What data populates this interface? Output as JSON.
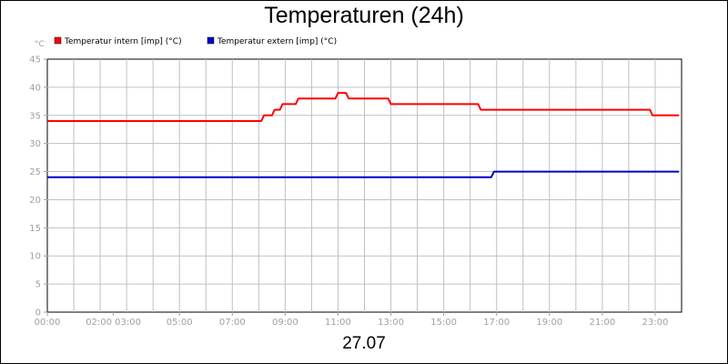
{
  "chart_data": {
    "type": "line",
    "title": "Temperaturen (24h)",
    "xlabel": "27.07",
    "ylabel": "°C",
    "x_unit": "hours",
    "xlim": [
      0,
      24
    ],
    "ylim": [
      0,
      45
    ],
    "y_ticks": [
      0,
      5,
      10,
      15,
      20,
      25,
      30,
      35,
      40,
      45
    ],
    "x_ticks": [
      {
        "x": 0,
        "label": "00:00"
      },
      {
        "x": 2.5,
        "label": "02:00 03:00"
      },
      {
        "x": 5,
        "label": "05:00"
      },
      {
        "x": 7,
        "label": "07:00"
      },
      {
        "x": 9,
        "label": "09:00"
      },
      {
        "x": 11,
        "label": "11:00"
      },
      {
        "x": 13,
        "label": "13:00"
      },
      {
        "x": 15,
        "label": "15:00"
      },
      {
        "x": 17,
        "label": "17:00"
      },
      {
        "x": 19,
        "label": "19:00"
      },
      {
        "x": 21,
        "label": "21:00"
      },
      {
        "x": 23,
        "label": "23:00"
      }
    ],
    "grid_x": [
      1,
      2,
      3,
      4,
      5,
      6,
      7,
      8,
      9,
      10,
      11,
      12,
      13,
      14,
      15,
      16,
      17,
      18,
      19,
      20,
      21,
      22,
      23
    ],
    "grid": true,
    "legend_position": "top-left",
    "series": [
      {
        "name": "Temperatur intern [imp] (°C)",
        "color": "#ff0000",
        "x": [
          0,
          8.1,
          8.2,
          8.5,
          8.6,
          8.8,
          8.9,
          9.4,
          9.5,
          10.9,
          11.0,
          11.3,
          11.4,
          12.9,
          13.0,
          16.3,
          16.4,
          22.8,
          22.9,
          23.9
        ],
        "y": [
          34,
          34,
          35,
          35,
          36,
          36,
          37,
          37,
          38,
          38,
          39,
          39,
          38,
          38,
          37,
          37,
          36,
          36,
          35,
          35
        ]
      },
      {
        "name": "Temperatur extern [imp] (°C)",
        "color": "#0000cc",
        "x": [
          0,
          16.8,
          16.9,
          23.9
        ],
        "y": [
          24,
          24,
          25,
          25
        ]
      }
    ]
  }
}
